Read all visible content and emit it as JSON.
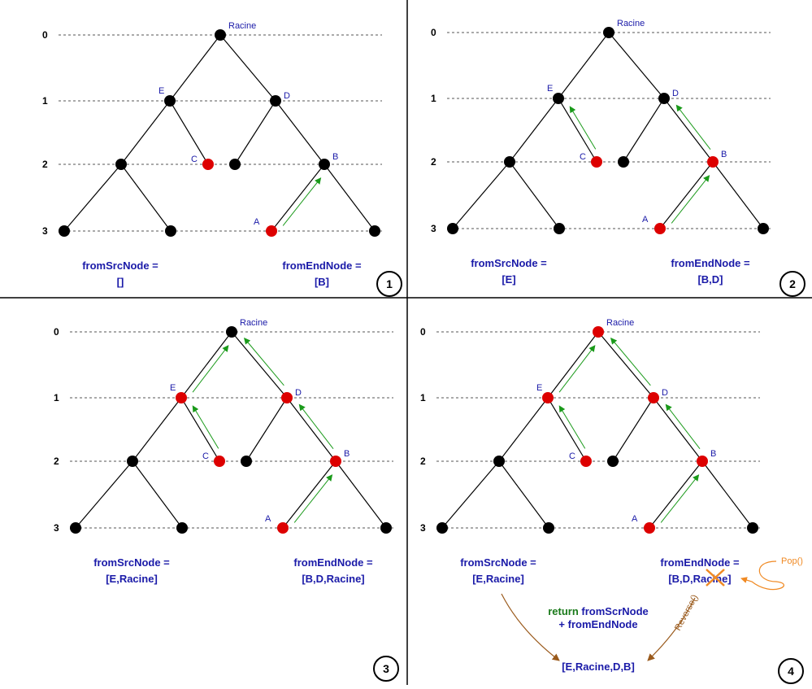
{
  "colors": {
    "node_default": "#000000",
    "node_highlight": "#dd0000",
    "arrow_path": "#1a9a1a",
    "label_blue": "#1a1aa8",
    "pop_orange": "#f08a24",
    "merge_brown": "#9a5a1c",
    "return_green": "#1a7a1a"
  },
  "levels": [
    "0",
    "1",
    "2",
    "3"
  ],
  "panels": [
    {
      "number": "1",
      "root_label": "Racine",
      "node_labels": {
        "E": "E",
        "D": "D",
        "C": "C",
        "B": "B",
        "A": "A"
      },
      "highlighted_nodes": [
        "C",
        "A"
      ],
      "arrows": [
        [
          "A",
          "B"
        ]
      ],
      "from_src": {
        "title": "fromSrcNode =",
        "value": "[]"
      },
      "from_end": {
        "title": "fromEndNode =",
        "value": "[B]"
      }
    },
    {
      "number": "2",
      "root_label": "Racine",
      "node_labels": {
        "E": "E",
        "D": "D",
        "C": "C",
        "B": "B",
        "A": "A"
      },
      "highlighted_nodes": [
        "C",
        "B",
        "A"
      ],
      "arrows": [
        [
          "C",
          "E"
        ],
        [
          "A",
          "B"
        ],
        [
          "B",
          "D"
        ]
      ],
      "from_src": {
        "title": "fromSrcNode =",
        "value": "[E]"
      },
      "from_end": {
        "title": "fromEndNode =",
        "value": "[B,D]"
      }
    },
    {
      "number": "3",
      "root_label": "Racine",
      "node_labels": {
        "E": "E",
        "D": "D",
        "C": "C",
        "B": "B",
        "A": "A"
      },
      "highlighted_nodes": [
        "E",
        "D",
        "C",
        "B",
        "A"
      ],
      "arrows": [
        [
          "C",
          "E"
        ],
        [
          "E",
          "root"
        ],
        [
          "A",
          "B"
        ],
        [
          "B",
          "D"
        ],
        [
          "D",
          "root"
        ]
      ],
      "from_src": {
        "title": "fromSrcNode =",
        "value": "[E,Racine]"
      },
      "from_end": {
        "title": "fromEndNode =",
        "value": "[B,D,Racine]"
      }
    },
    {
      "number": "4",
      "root_label": "Racine",
      "node_labels": {
        "E": "E",
        "D": "D",
        "C": "C",
        "B": "B",
        "A": "A"
      },
      "highlighted_nodes": [
        "root",
        "E",
        "D",
        "C",
        "B",
        "A"
      ],
      "arrows": [
        [
          "C",
          "E"
        ],
        [
          "E",
          "root"
        ],
        [
          "A",
          "B"
        ],
        [
          "B",
          "D"
        ],
        [
          "D",
          "root"
        ]
      ],
      "from_src": {
        "title": "fromSrcNode =",
        "value": "[E,Racine]"
      },
      "from_end": {
        "title": "fromEndNode =",
        "value": "[B,D,Racine]"
      },
      "pop_label": "Pop()",
      "reverse_label": "Reverse()",
      "return_keyword": "return",
      "return_line1": "fromScrNode",
      "return_line2": "+ fromEndNode",
      "result": "[E,Racine,D,B]"
    }
  ]
}
